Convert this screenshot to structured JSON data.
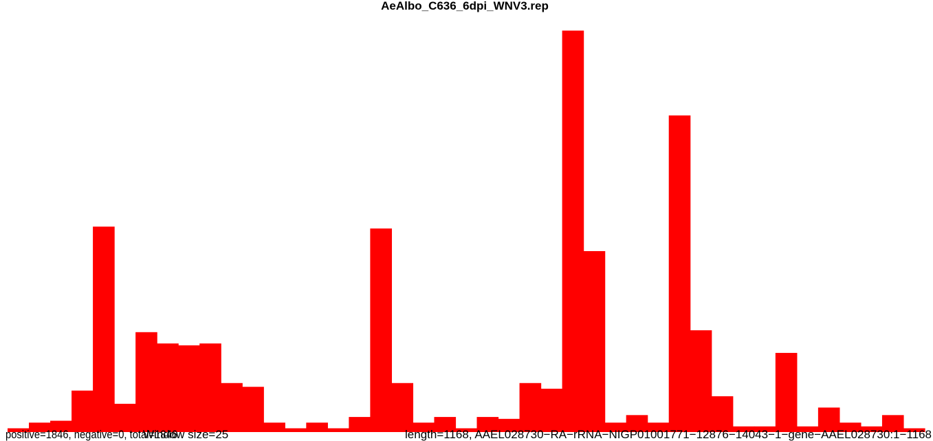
{
  "chart_data": {
    "type": "bar",
    "title": "AeAlbo_C636_6dpi_WNV3.rep",
    "footer_positive": "positive=1846, negative=0, total=1846",
    "footer_window": "Window size=25",
    "footer_info": "length=1168, AAEL028730−RA−rRNA−NIGP01001771−12876−14043−1−gene−AAEL028730:1−1168",
    "x_range": [
      1,
      1168
    ],
    "ylim": [
      0,
      215
    ],
    "grid": false,
    "legend": "none",
    "bar_color": "#ff0000",
    "values": [
      2,
      5,
      6,
      22,
      109,
      15,
      53,
      47,
      46,
      47,
      26,
      24,
      5,
      2,
      5,
      2,
      8,
      108,
      26,
      5,
      8,
      2,
      8,
      7,
      26,
      23,
      213,
      96,
      5,
      9,
      5,
      168,
      54,
      19,
      3,
      3,
      42,
      3,
      13,
      5,
      3,
      9,
      2
    ]
  }
}
